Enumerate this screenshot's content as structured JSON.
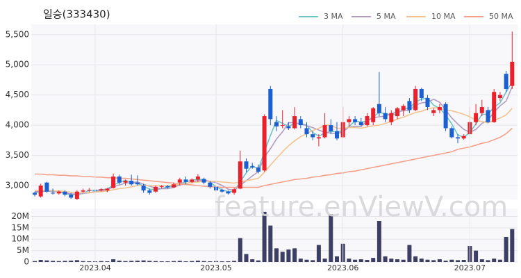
{
  "chart_data": [
    {
      "type": "candlestick",
      "title": "일승(333430)",
      "up_color": "#e8212d",
      "down_color": "#1b5fd1",
      "open": [
        2880,
        2820,
        3050,
        2880,
        2870,
        2900,
        2850,
        2780,
        2900,
        2920,
        2930,
        2920,
        2920,
        2960,
        3150,
        3050,
        3080,
        3050,
        3000,
        2920,
        2900,
        2980,
        2990,
        2970,
        3050,
        3100,
        3060,
        3100,
        3110,
        3050,
        2980,
        2930,
        2900,
        2880,
        2950,
        3400,
        3320,
        3300,
        3250,
        4600,
        4050,
        4000,
        3980,
        3950,
        4100,
        3950,
        3850,
        3780,
        3800,
        4000,
        3900,
        3800,
        4050,
        4100,
        4050,
        4000,
        4050,
        4350,
        4200,
        4050,
        4150,
        4250,
        4400,
        4250,
        4600,
        4450,
        4200,
        4250,
        4350,
        3950,
        3800,
        3780,
        3850,
        4050,
        4200,
        4250,
        4050,
        4450,
        4850,
        4650
      ],
      "high": [
        2900,
        3030,
        3060,
        2950,
        2920,
        2920,
        2880,
        2920,
        2950,
        2960,
        2960,
        2960,
        2960,
        3200,
        3180,
        3100,
        3180,
        3170,
        3030,
        2950,
        3000,
        3010,
        3010,
        3050,
        3130,
        3150,
        3120,
        3190,
        3130,
        3080,
        3000,
        2950,
        2920,
        2960,
        3580,
        3450,
        3380,
        3350,
        4180,
        4650,
        4150,
        4250,
        4050,
        4300,
        4150,
        4050,
        3900,
        3850,
        4200,
        4100,
        4050,
        4300,
        4150,
        4150,
        4120,
        4200,
        4300,
        4880,
        4300,
        4250,
        4300,
        4350,
        4450,
        4650,
        4620,
        4500,
        4280,
        4350,
        4380,
        3980,
        3850,
        3850,
        4300,
        4350,
        4420,
        4300,
        4600,
        4550,
        4900,
        5550
      ],
      "low": [
        2820,
        2800,
        2880,
        2850,
        2850,
        2820,
        2780,
        2760,
        2880,
        2890,
        2900,
        2900,
        2890,
        2950,
        3020,
        3000,
        3000,
        3000,
        2880,
        2850,
        2880,
        2950,
        2950,
        2960,
        3000,
        3020,
        3040,
        3060,
        3020,
        2950,
        2900,
        2880,
        2850,
        2850,
        2940,
        3220,
        3280,
        3200,
        3230,
        4000,
        3900,
        3950,
        3920,
        3930,
        3950,
        3800,
        3750,
        3650,
        3780,
        3850,
        3750,
        3780,
        3980,
        4000,
        3980,
        3980,
        4000,
        4150,
        4050,
        4000,
        4100,
        4150,
        4200,
        4230,
        4400,
        4250,
        4150,
        4200,
        3900,
        3780,
        3700,
        3760,
        3830,
        4000,
        4150,
        4030,
        4040,
        4400,
        4550,
        4600
      ],
      "close": [
        2850,
        3000,
        2900,
        2870,
        2900,
        2850,
        2800,
        2900,
        2920,
        2930,
        2920,
        2940,
        2950,
        3150,
        3050,
        3080,
        3020,
        3020,
        2920,
        2880,
        2980,
        2990,
        2970,
        3020,
        3100,
        3060,
        3100,
        3150,
        3050,
        2980,
        2920,
        2900,
        2870,
        2940,
        3400,
        3280,
        3300,
        3230,
        4150,
        4100,
        3980,
        4000,
        3950,
        4150,
        4000,
        3850,
        3800,
        3800,
        4000,
        3900,
        3780,
        4050,
        4100,
        4050,
        4000,
        4150,
        4280,
        4200,
        4100,
        4200,
        4280,
        4320,
        4250,
        4600,
        4450,
        4300,
        4250,
        4300,
        3950,
        3800,
        3780,
        3820,
        4050,
        4200,
        4300,
        4050,
        4550,
        4500,
        4600,
        5050
      ],
      "series": [
        {
          "name": "3 MA",
          "color": "#6cc5c8",
          "values": [
            2880,
            2900,
            2920,
            2920,
            2890,
            2870,
            2850,
            2850,
            2870,
            2920,
            2920,
            2930,
            2940,
            3010,
            3050,
            3090,
            3050,
            3040,
            2990,
            2940,
            2930,
            2950,
            2980,
            2990,
            3030,
            3060,
            3090,
            3100,
            3100,
            3060,
            2980,
            2930,
            2900,
            2900,
            3070,
            3210,
            3330,
            3270,
            3560,
            3830,
            4080,
            4030,
            3980,
            4030,
            4030,
            4000,
            3880,
            3820,
            3870,
            3900,
            3890,
            3910,
            3980,
            4070,
            4050,
            4070,
            4140,
            4210,
            4190,
            4170,
            4190,
            4270,
            4280,
            4390,
            4430,
            4450,
            4330,
            4280,
            4170,
            4020,
            3840,
            3800,
            3880,
            4020,
            4180,
            4180,
            4300,
            4370,
            4550,
            4720
          ]
        },
        {
          "name": "5 MA",
          "color": "#b09cc0",
          "values": [
            2900,
            2900,
            2910,
            2900,
            2900,
            2880,
            2860,
            2860,
            2870,
            2880,
            2900,
            2920,
            2930,
            2980,
            3010,
            3040,
            3050,
            3060,
            3020,
            2990,
            2960,
            2950,
            2950,
            2970,
            3010,
            3030,
            3060,
            3080,
            3090,
            3070,
            3050,
            3000,
            2940,
            2920,
            3010,
            3080,
            3160,
            3230,
            3470,
            3610,
            3770,
            3890,
            4040,
            4040,
            4020,
            3990,
            3960,
            3920,
            3880,
            3870,
            3860,
            3890,
            3970,
            3980,
            3980,
            4070,
            4120,
            4140,
            4150,
            4190,
            4220,
            4240,
            4250,
            4330,
            4370,
            4380,
            4430,
            4380,
            4250,
            4120,
            4020,
            3930,
            3880,
            3930,
            4030,
            4080,
            4220,
            4320,
            4400,
            4640
          ]
        },
        {
          "name": "10 MA",
          "color": "#f2c38f",
          "values": [
            2920,
            2920,
            2920,
            2910,
            2910,
            2900,
            2890,
            2880,
            2880,
            2880,
            2890,
            2900,
            2910,
            2930,
            2950,
            2960,
            2980,
            3000,
            3000,
            3000,
            3000,
            3000,
            3000,
            3010,
            3020,
            3040,
            3050,
            3060,
            3070,
            3070,
            3070,
            3060,
            3050,
            3040,
            3060,
            3080,
            3100,
            3120,
            3220,
            3340,
            3450,
            3560,
            3660,
            3740,
            3810,
            3860,
            3910,
            3950,
            4000,
            4000,
            3950,
            3950,
            3960,
            3960,
            3950,
            3970,
            3990,
            4000,
            4030,
            4060,
            4100,
            4130,
            4170,
            4210,
            4230,
            4270,
            4290,
            4280,
            4250,
            4240,
            4210,
            4180,
            4140,
            4080,
            4060,
            4040,
            4080,
            4120,
            4170,
            4280
          ]
        },
        {
          "name": "50 MA",
          "color": "#f4a08a",
          "values": [
            3190,
            3190,
            3180,
            3180,
            3170,
            3170,
            3160,
            3160,
            3150,
            3150,
            3140,
            3140,
            3130,
            3130,
            3120,
            3120,
            3110,
            3100,
            3090,
            3080,
            3070,
            3060,
            3050,
            3040,
            3030,
            3020,
            3010,
            3000,
            2990,
            2980,
            2980,
            2970,
            2970,
            2970,
            2970,
            2970,
            2970,
            2970,
            3000,
            3020,
            3040,
            3060,
            3080,
            3100,
            3110,
            3120,
            3140,
            3150,
            3170,
            3180,
            3200,
            3210,
            3230,
            3240,
            3260,
            3280,
            3300,
            3320,
            3340,
            3360,
            3380,
            3400,
            3420,
            3440,
            3460,
            3480,
            3500,
            3520,
            3540,
            3560,
            3600,
            3620,
            3640,
            3670,
            3700,
            3720,
            3760,
            3800,
            3860,
            3950
          ]
        }
      ],
      "ylim": [
        2770,
        5670
      ],
      "yticks": [
        {
          "value": 3000,
          "label": "3,000"
        },
        {
          "value": 3500,
          "label": "3,500"
        },
        {
          "value": 4000,
          "label": "4,000"
        },
        {
          "value": 4500,
          "label": "4,500"
        },
        {
          "value": 5000,
          "label": "5,000"
        },
        {
          "value": 5500,
          "label": "5,500"
        }
      ],
      "grid": true,
      "legend": "top-right"
    },
    {
      "type": "bar",
      "color": "#3d3e63",
      "categories": [
        null,
        null,
        null,
        null,
        null,
        null,
        null,
        null,
        null,
        null,
        "2023.04",
        null,
        null,
        null,
        null,
        null,
        null,
        null,
        null,
        null,
        null,
        null,
        null,
        null,
        null,
        null,
        null,
        null,
        null,
        null,
        "2023.05",
        null,
        null,
        null,
        null,
        null,
        null,
        null,
        null,
        null,
        null,
        null,
        null,
        null,
        null,
        null,
        null,
        null,
        null,
        null,
        null,
        "2023.06",
        null,
        null,
        null,
        null,
        null,
        null,
        null,
        null,
        null,
        null,
        null,
        null,
        null,
        null,
        null,
        null,
        null,
        null,
        null,
        null,
        "2023.07",
        null,
        null,
        null,
        null,
        null,
        null,
        null
      ],
      "values": [
        400000,
        900000,
        700000,
        500000,
        400000,
        500000,
        600000,
        800000,
        400000,
        300000,
        300000,
        400000,
        300000,
        1200000,
        600000,
        400000,
        500000,
        600000,
        700000,
        500000,
        400000,
        300000,
        300000,
        400000,
        500000,
        300000,
        400000,
        600000,
        400000,
        300000,
        400000,
        300000,
        300000,
        500000,
        10500000,
        3500000,
        1200000,
        700000,
        22000000,
        16000000,
        6000000,
        4500000,
        5500000,
        6000000,
        1500000,
        1000000,
        800000,
        7500000,
        1500000,
        21000000,
        2500000,
        8000000,
        1500000,
        1000000,
        1200000,
        900000,
        1800000,
        18000000,
        2500000,
        1500000,
        1200000,
        1000000,
        7500000,
        2500000,
        1500000,
        1000000,
        800000,
        1200000,
        600000,
        1000000,
        800000,
        900000,
        7000000,
        5000000,
        1200000,
        800000,
        1500000,
        1000000,
        11000000,
        14500000
      ],
      "ylim": [
        0,
        23500000
      ],
      "yticks": [
        0,
        {
          "value": 5000000,
          "label": "5M"
        },
        {
          "value": 10000000,
          "label": "10M"
        },
        {
          "value": 15000000,
          "label": "15M"
        },
        {
          "value": 20000000,
          "label": "20M"
        }
      ],
      "grid": true
    }
  ],
  "watermark": "feature.enViewV.com"
}
